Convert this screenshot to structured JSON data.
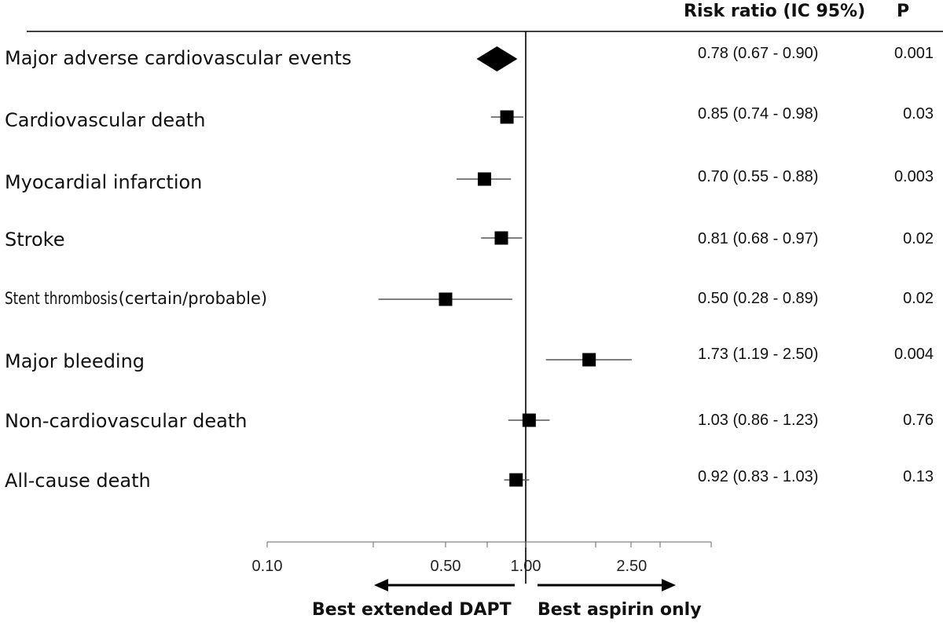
{
  "headers": {
    "risk_ratio": "Risk ratio (IC 95%)",
    "p": "P"
  },
  "rows": [
    {
      "label": "Major adverse cardiovascular events",
      "ratio_text": "0.78 (0.67 - 0.90)",
      "p": "0.001"
    },
    {
      "label": "Cardiovascular death",
      "ratio_text": "0.85 (0.74 - 0.98)",
      "p": "0.03"
    },
    {
      "label": "Myocardial infarction",
      "ratio_text": "0.70 (0.55 - 0.88)",
      "p": "0.003"
    },
    {
      "label": "Stroke",
      "ratio_text": "0.81 (0.68 - 0.97)",
      "p": "0.02"
    },
    {
      "label_part1": "Stent thrombosis",
      "label_part2": "(certain/probable)",
      "ratio_text": "0.50 (0.28 - 0.89)",
      "p": "0.02"
    },
    {
      "label": "Major bleeding",
      "ratio_text": "1.73 (1.19 - 2.50)",
      "p": "0.004"
    },
    {
      "label": "Non-cardiovascular death",
      "ratio_text": "1.03 (0.86 - 1.23)",
      "p": "0.76"
    },
    {
      "label": "All-cause death",
      "ratio_text": "0.92 (0.83 - 1.03)",
      "p": "0.13"
    }
  ],
  "direction_labels": {
    "left": "Best extended DAPT",
    "right": "Best aspirin only"
  },
  "chart_data": {
    "type": "forest",
    "xscale": "log",
    "xlim": [
      0.1,
      5.0
    ],
    "xticks": [
      0.1,
      0.5,
      1.0,
      2.5
    ],
    "xtick_labels": [
      "0.10",
      "0.50",
      "1.00",
      "2.50"
    ],
    "reference_line": 1.0,
    "estimates": [
      {
        "category": "Major adverse cardiovascular events",
        "value": 0.78,
        "lower": 0.67,
        "upper": 0.9,
        "marker": "diamond"
      },
      {
        "category": "Cardiovascular death",
        "value": 0.85,
        "lower": 0.74,
        "upper": 0.98,
        "marker": "square"
      },
      {
        "category": "Myocardial infarction",
        "value": 0.7,
        "lower": 0.55,
        "upper": 0.88,
        "marker": "square"
      },
      {
        "category": "Stroke",
        "value": 0.81,
        "lower": 0.68,
        "upper": 0.97,
        "marker": "square"
      },
      {
        "category": "Stent thrombosis(certain/probable)",
        "value": 0.5,
        "lower": 0.28,
        "upper": 0.89,
        "marker": "square"
      },
      {
        "category": "Major bleeding",
        "value": 1.73,
        "lower": 1.19,
        "upper": 2.5,
        "marker": "square"
      },
      {
        "category": "Non-cardiovascular death",
        "value": 1.03,
        "lower": 0.86,
        "upper": 1.23,
        "marker": "square"
      },
      {
        "category": "All-cause death",
        "value": 0.92,
        "lower": 0.83,
        "upper": 1.03,
        "marker": "square"
      }
    ],
    "colors": {
      "marker": "#000000",
      "ci_line": "#555555",
      "axis": "#333333"
    }
  }
}
